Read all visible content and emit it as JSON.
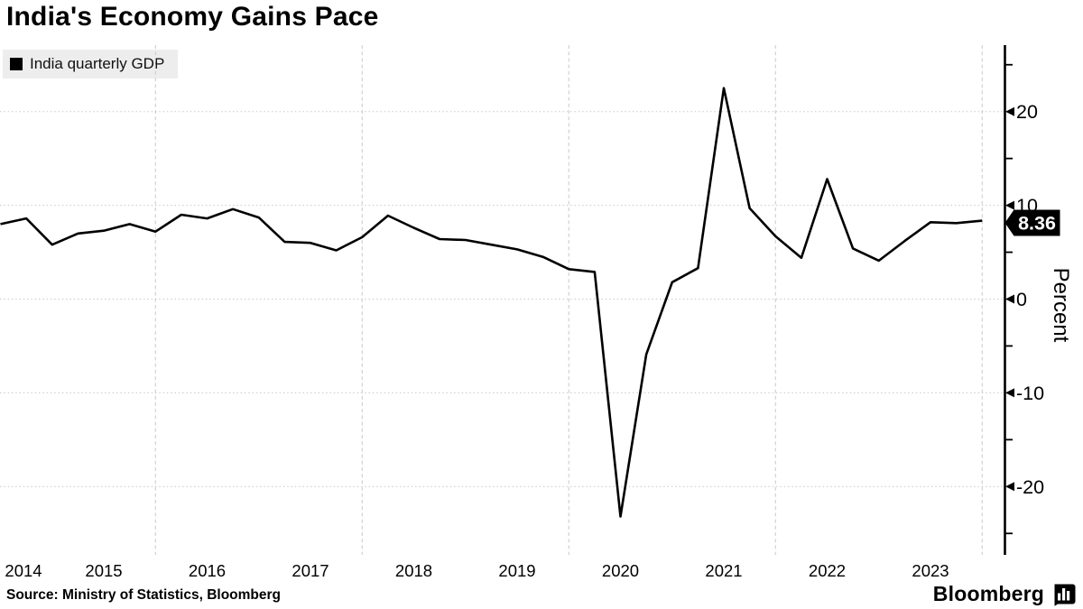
{
  "title": "India's Economy Gains Pace",
  "legend": {
    "label": "India quarterly GDP"
  },
  "source_line": "Source: Ministry of Statistics, Bloomberg",
  "branding": {
    "name": "Bloomberg",
    "mark": "bloomberg-bars-icon"
  },
  "badge": {
    "value": "8.36"
  },
  "y_axis": {
    "title": "Percent",
    "major_ticks": [
      "20",
      "10",
      "0",
      "-10",
      "-20"
    ],
    "minor_tick_values": [
      25,
      15,
      5,
      -5,
      -15,
      -25
    ]
  },
  "x_axis": {
    "years": [
      "2014",
      "2015",
      "2016",
      "2017",
      "2018",
      "2019",
      "2020",
      "2021",
      "2022",
      "2023"
    ],
    "gridline_years": [
      2016,
      2018,
      2020,
      2022,
      2024
    ]
  },
  "colors": {
    "line": "#000000",
    "grid": "#c8c8c8",
    "axis": "#000000",
    "legend_bg": "#ededed",
    "badge_bg": "#000000",
    "badge_fg": "#ffffff"
  },
  "chart_data": {
    "type": "line",
    "title": "India's Economy Gains Pace",
    "ylabel": "Percent",
    "ylim": [
      -27,
      27.5
    ],
    "y_major_ticks": [
      20,
      10,
      0,
      -10,
      -20
    ],
    "grid": true,
    "legend_position": "top-left",
    "last_value_label": 8.36,
    "series": [
      {
        "name": "India quarterly GDP",
        "color": "#000000",
        "x": [
          "Q2 2014",
          "Q3 2014",
          "Q4 2014",
          "Q1 2015",
          "Q2 2015",
          "Q3 2015",
          "Q4 2015",
          "Q1 2016",
          "Q2 2016",
          "Q3 2016",
          "Q4 2016",
          "Q1 2017",
          "Q2 2017",
          "Q3 2017",
          "Q4 2017",
          "Q1 2018",
          "Q2 2018",
          "Q3 2018",
          "Q4 2018",
          "Q1 2019",
          "Q2 2019",
          "Q3 2019",
          "Q4 2019",
          "Q1 2020",
          "Q2 2020",
          "Q3 2020",
          "Q4 2020",
          "Q1 2021",
          "Q2 2021",
          "Q3 2021",
          "Q4 2021",
          "Q1 2022",
          "Q2 2022",
          "Q3 2022",
          "Q4 2022",
          "Q1 2023",
          "Q2 2023",
          "Q3 2023",
          "Q4 2023"
        ],
        "values": [
          8.0,
          8.6,
          5.8,
          7.0,
          7.3,
          8.0,
          7.2,
          9.0,
          8.6,
          9.6,
          8.7,
          6.1,
          6.0,
          5.2,
          6.6,
          8.9,
          7.6,
          6.4,
          6.3,
          5.8,
          5.3,
          4.5,
          3.2,
          2.9,
          -23.2,
          -5.9,
          1.8,
          3.3,
          22.5,
          9.7,
          6.7,
          4.4,
          12.8,
          5.4,
          4.1,
          6.2,
          8.2,
          8.1,
          8.36
        ]
      }
    ]
  }
}
